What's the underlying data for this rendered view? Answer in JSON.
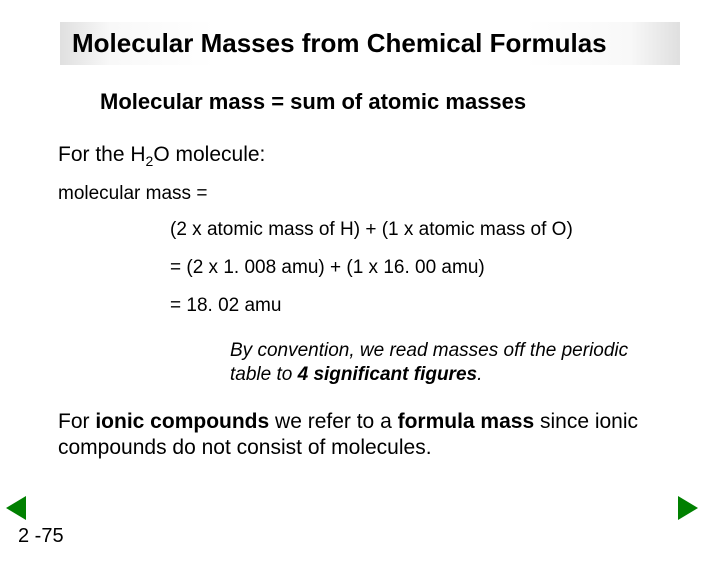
{
  "title": "Molecular Masses from Chemical Formulas",
  "subtitle": "Molecular mass = sum of atomic masses",
  "line1_pre": "For the H",
  "line1_sub": "2",
  "line1_post": "O molecule:",
  "line2": "molecular mass =",
  "calc1": "(2 x atomic mass of H) + (1 x atomic mass of O)",
  "calc2": "= (2 x 1. 008 amu) + (1 x 16. 00 amu)",
  "calc3": "= 18. 02 amu",
  "note_pre": "By convention, we read masses off the periodic table to ",
  "note_bold": "4 significant figures",
  "note_post": ".",
  "ionic_a": "For ",
  "ionic_b1": "ionic compounds",
  "ionic_c": " we refer to a ",
  "ionic_b2": "formula mass",
  "ionic_d": " since ionic compounds do not consist of molecules.",
  "pagenum": "2 -75",
  "colors": {
    "arrow": "#008000",
    "text": "#000000",
    "bg": "#ffffff"
  }
}
